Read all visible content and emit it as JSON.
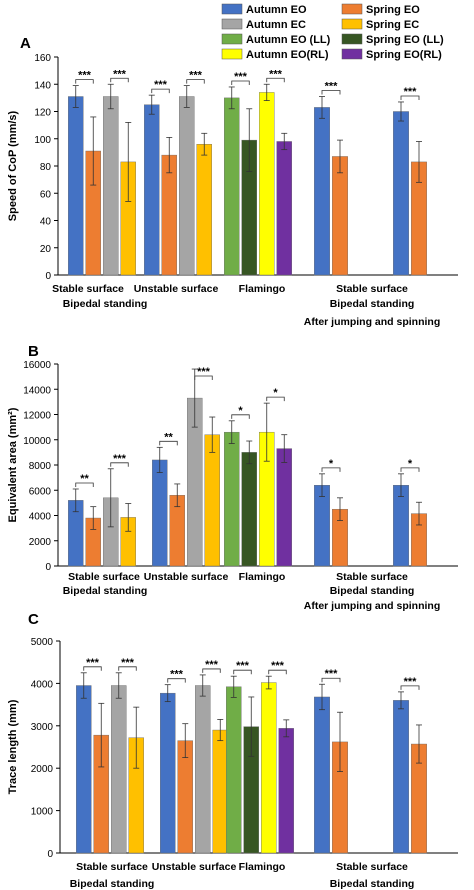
{
  "legend": [
    {
      "name": "Autumn EO",
      "color": "#4472C4"
    },
    {
      "name": "Spring EO",
      "color": "#ED7D31"
    },
    {
      "name": "Autumn EC",
      "color": "#A5A5A5"
    },
    {
      "name": "Spring EC",
      "color": "#FFC000"
    },
    {
      "name": "Autumn EO (LL)",
      "color": "#70AD47"
    },
    {
      "name": "Spring EO (LL)",
      "color": "#375623"
    },
    {
      "name": "Autumn EO(RL)",
      "color": "#FFFF00"
    },
    {
      "name": "Spring EO(RL)",
      "color": "#7030A0"
    }
  ],
  "chart_data": [
    {
      "type": "bar",
      "panel": "A",
      "ylabel": "Speed of CoP (mm/s)",
      "ylim": [
        0,
        160
      ],
      "yticks": [
        0,
        20,
        40,
        60,
        80,
        100,
        120,
        140,
        160
      ],
      "group_labels": [
        "Stable surface",
        "Unstable surface",
        "Flamingo",
        "Stable surface"
      ],
      "group_sublabels": [
        "Bipedal standing",
        "Bipedal standing",
        "After jumping and spinning"
      ],
      "groups": [
        {
          "bars": [
            {
              "series": "Autumn EO",
              "value": 131,
              "err": 8
            },
            {
              "series": "Spring EO",
              "value": 91,
              "err": 25
            },
            {
              "series": "Autumn EC",
              "value": 131,
              "err": 9
            },
            {
              "series": "Spring EC",
              "value": 83,
              "err": 29
            }
          ],
          "sig": [
            {
              "from": 0,
              "to": 1,
              "label": "***"
            },
            {
              "from": 2,
              "to": 3,
              "label": "***"
            }
          ]
        },
        {
          "bars": [
            {
              "series": "Autumn EO",
              "value": 125,
              "err": 7
            },
            {
              "series": "Spring EO",
              "value": 88,
              "err": 13
            },
            {
              "series": "Autumn EC",
              "value": 131,
              "err": 8
            },
            {
              "series": "Spring EC",
              "value": 96,
              "err": 8
            }
          ],
          "sig": [
            {
              "from": 0,
              "to": 1,
              "label": "***"
            },
            {
              "from": 2,
              "to": 3,
              "label": "***"
            }
          ]
        },
        {
          "bars": [
            {
              "series": "Autumn EO (LL)",
              "value": 130,
              "err": 8
            },
            {
              "series": "Spring EO (LL)",
              "value": 99,
              "err": 23
            },
            {
              "series": "Autumn EO(RL)",
              "value": 134,
              "err": 6
            },
            {
              "series": "Spring EO(RL)",
              "value": 98,
              "err": 6
            }
          ],
          "sig": [
            {
              "from": 0,
              "to": 1,
              "label": "***"
            },
            {
              "from": 2,
              "to": 3,
              "label": "***"
            }
          ]
        },
        {
          "bars": [
            {
              "series": "Autumn EO",
              "value": 123,
              "err": 8
            },
            {
              "series": "Spring EO",
              "value": 87,
              "err": 12
            }
          ],
          "sig": [
            {
              "from": 0,
              "to": 1,
              "label": "***"
            }
          ]
        },
        {
          "bars": [
            {
              "series": "Autumn EO",
              "value": 120,
              "err": 7
            },
            {
              "series": "Spring EO",
              "value": 83,
              "err": 15
            }
          ],
          "sig": [
            {
              "from": 0,
              "to": 1,
              "label": "***"
            }
          ]
        }
      ]
    },
    {
      "type": "bar",
      "panel": "B",
      "ylabel": "Equivalent area (mm²)",
      "ylim": [
        0,
        16000
      ],
      "yticks": [
        0,
        2000,
        4000,
        6000,
        8000,
        10000,
        12000,
        14000,
        16000
      ],
      "group_labels": [
        "Stable surface",
        "Unstable surface",
        "Flamingo",
        "Stable surface"
      ],
      "group_sublabels": [
        "Bipedal standing",
        "Bipedal standing",
        "After jumping and spinning"
      ],
      "groups": [
        {
          "bars": [
            {
              "series": "Autumn EO",
              "value": 5200,
              "err": 900
            },
            {
              "series": "Spring EO",
              "value": 3800,
              "err": 900
            },
            {
              "series": "Autumn EC",
              "value": 5400,
              "err": 2300
            },
            {
              "series": "Spring EC",
              "value": 3850,
              "err": 1100
            }
          ],
          "sig": [
            {
              "from": 0,
              "to": 1,
              "label": "**"
            },
            {
              "from": 2,
              "to": 3,
              "label": "***"
            }
          ]
        },
        {
          "bars": [
            {
              "series": "Autumn EO",
              "value": 8400,
              "err": 1000
            },
            {
              "series": "Spring EO",
              "value": 5600,
              "err": 900
            },
            {
              "series": "Autumn EC",
              "value": 13300,
              "err": 2300
            },
            {
              "series": "Spring EC",
              "value": 10400,
              "err": 1400
            }
          ],
          "sig": [
            {
              "from": 0,
              "to": 1,
              "label": "**"
            },
            {
              "from": 2,
              "to": 3,
              "label": "***"
            }
          ]
        },
        {
          "bars": [
            {
              "series": "Autumn EO (LL)",
              "value": 10600,
              "err": 900
            },
            {
              "series": "Spring EO (LL)",
              "value": 9000,
              "err": 900
            },
            {
              "series": "Autumn EO(RL)",
              "value": 10600,
              "err": 2300
            },
            {
              "series": "Spring EO(RL)",
              "value": 9300,
              "err": 1100
            }
          ],
          "sig": [
            {
              "from": 0,
              "to": 1,
              "label": "*"
            },
            {
              "from": 2,
              "to": 3,
              "label": "*"
            }
          ]
        },
        {
          "bars": [
            {
              "series": "Autumn EO",
              "value": 6400,
              "err": 900
            },
            {
              "series": "Spring EO",
              "value": 4500,
              "err": 900
            }
          ],
          "sig": [
            {
              "from": 0,
              "to": 1,
              "label": "*"
            }
          ]
        },
        {
          "bars": [
            {
              "series": "Autumn EO",
              "value": 6400,
              "err": 900
            },
            {
              "series": "Spring EO",
              "value": 4150,
              "err": 900
            }
          ],
          "sig": [
            {
              "from": 0,
              "to": 1,
              "label": "*"
            }
          ]
        }
      ]
    },
    {
      "type": "bar",
      "panel": "C",
      "ylabel": "Trace length (mm)",
      "ylim": [
        0,
        5000
      ],
      "yticks": [
        0,
        1000,
        2000,
        3000,
        4000,
        5000
      ],
      "group_labels": [
        "Stable surface",
        "Unstable surface",
        "Flamingo",
        "Stable surface"
      ],
      "group_sublabels": [
        "Bipedal standing",
        "Bipedal standing"
      ],
      "groups": [
        {
          "bars": [
            {
              "series": "Autumn EO",
              "value": 3950,
              "err": 300
            },
            {
              "series": "Spring EO",
              "value": 2780,
              "err": 750
            },
            {
              "series": "Autumn EC",
              "value": 3950,
              "err": 300
            },
            {
              "series": "Spring EC",
              "value": 2720,
              "err": 720
            }
          ],
          "sig": [
            {
              "from": 0,
              "to": 1,
              "label": "***"
            },
            {
              "from": 2,
              "to": 3,
              "label": "***"
            }
          ]
        },
        {
          "bars": [
            {
              "series": "Autumn EO",
              "value": 3770,
              "err": 200
            },
            {
              "series": "Spring EO",
              "value": 2650,
              "err": 400
            },
            {
              "series": "Autumn EC",
              "value": 3950,
              "err": 250
            },
            {
              "series": "Spring EC",
              "value": 2900,
              "err": 250
            }
          ],
          "sig": [
            {
              "from": 0,
              "to": 1,
              "label": "***"
            },
            {
              "from": 2,
              "to": 3,
              "label": "***"
            }
          ]
        },
        {
          "bars": [
            {
              "series": "Autumn EO (LL)",
              "value": 3920,
              "err": 250
            },
            {
              "series": "Spring EO (LL)",
              "value": 2980,
              "err": 700
            },
            {
              "series": "Autumn EO(RL)",
              "value": 4020,
              "err": 150
            },
            {
              "series": "Spring EO(RL)",
              "value": 2940,
              "err": 200
            }
          ],
          "sig": [
            {
              "from": 0,
              "to": 1,
              "label": "***"
            },
            {
              "from": 2,
              "to": 3,
              "label": "***"
            }
          ]
        },
        {
          "bars": [
            {
              "series": "Autumn EO",
              "value": 3680,
              "err": 300
            },
            {
              "series": "Spring EO",
              "value": 2620,
              "err": 700
            }
          ],
          "sig": [
            {
              "from": 0,
              "to": 1,
              "label": "***"
            }
          ]
        },
        {
          "bars": [
            {
              "series": "Autumn EO",
              "value": 3600,
              "err": 200
            },
            {
              "series": "Spring EO",
              "value": 2570,
              "err": 450
            }
          ],
          "sig": [
            {
              "from": 0,
              "to": 1,
              "label": "***"
            }
          ]
        }
      ]
    }
  ]
}
